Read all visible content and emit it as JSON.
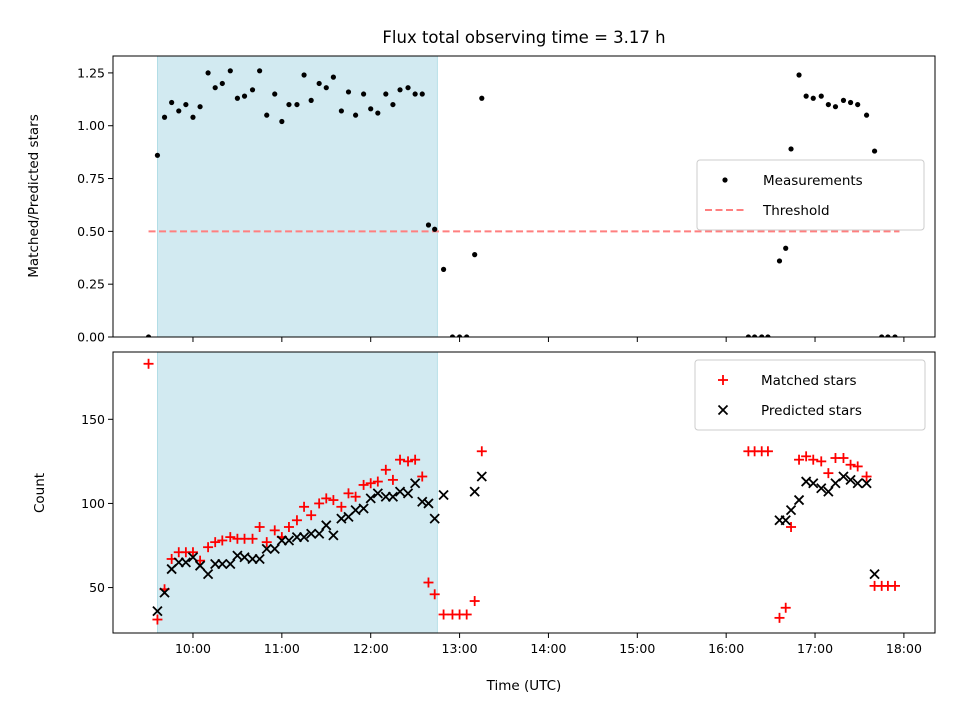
{
  "chart_data": {
    "type": "scatter",
    "title": "Flux total observing time = 3.17 h",
    "xlabel": "Time (UTC)",
    "xlim": [
      9.1,
      18.35
    ],
    "xticks": [
      10,
      11,
      12,
      13,
      14,
      15,
      16,
      17,
      18
    ],
    "xtick_labels": [
      "10:00",
      "11:00",
      "12:00",
      "13:00",
      "14:00",
      "15:00",
      "16:00",
      "17:00",
      "18:00"
    ],
    "shaded_span": [
      9.6,
      12.75
    ],
    "colors": {
      "shade": "#add8e6",
      "threshold": "#ff7f7f",
      "matched": "#ff0000",
      "predicted": "#000000",
      "measurement": "#000000"
    },
    "panels": [
      {
        "id": "ratio",
        "ylabel": "Matched/Predicted stars",
        "ylim": [
          0,
          1.33
        ],
        "yticks": [
          0,
          0.25,
          0.5,
          0.75,
          1.0,
          1.25
        ],
        "ytick_labels": [
          "0.00",
          "0.25",
          "0.50",
          "0.75",
          "1.00",
          "1.25"
        ],
        "legend": {
          "placement": "center-right",
          "entries": [
            "Measurements",
            "Threshold"
          ]
        },
        "threshold": {
          "name": "Threshold",
          "x": [
            9.5,
            17.95
          ],
          "y": [
            0.5,
            0.5
          ]
        },
        "series": [
          {
            "name": "Measurements",
            "x": [
              9.5,
              9.6,
              9.68,
              9.76,
              9.84,
              9.92,
              10.0,
              10.08,
              10.17,
              10.25,
              10.33,
              10.42,
              10.5,
              10.58,
              10.67,
              10.75,
              10.83,
              10.92,
              11.0,
              11.08,
              11.17,
              11.25,
              11.33,
              11.42,
              11.5,
              11.58,
              11.67,
              11.75,
              11.83,
              11.92,
              12.0,
              12.08,
              12.17,
              12.25,
              12.33,
              12.42,
              12.5,
              12.58,
              12.65,
              12.72,
              12.82,
              12.92,
              13.0,
              13.08,
              13.17,
              13.25,
              16.25,
              16.32,
              16.4,
              16.47,
              16.6,
              16.67,
              16.73,
              16.82,
              16.9,
              16.98,
              17.07,
              17.15,
              17.23,
              17.32,
              17.4,
              17.48,
              17.58,
              17.67,
              17.75,
              17.82,
              17.9
            ],
            "y": [
              0.0,
              0.86,
              1.04,
              1.11,
              1.07,
              1.1,
              1.04,
              1.09,
              1.25,
              1.18,
              1.2,
              1.26,
              1.13,
              1.14,
              1.17,
              1.26,
              1.05,
              1.15,
              1.02,
              1.1,
              1.1,
              1.24,
              1.12,
              1.2,
              1.18,
              1.23,
              1.07,
              1.16,
              1.05,
              1.15,
              1.08,
              1.06,
              1.15,
              1.1,
              1.17,
              1.18,
              1.15,
              1.15,
              0.53,
              0.51,
              0.32,
              0.0,
              0.0,
              0.0,
              0.39,
              1.13,
              0.0,
              0.0,
              0.0,
              0.0,
              0.36,
              0.42,
              0.89,
              1.24,
              1.14,
              1.13,
              1.14,
              1.1,
              1.09,
              1.12,
              1.11,
              1.1,
              1.05,
              0.88,
              0.0,
              0.0,
              0.0
            ]
          }
        ]
      },
      {
        "id": "count",
        "ylabel": "Count",
        "ylim": [
          23,
          190
        ],
        "yticks": [
          50,
          100,
          150
        ],
        "ytick_labels": [
          "50",
          "100",
          "150"
        ],
        "legend": {
          "placement": "upper-right",
          "entries": [
            "Matched stars",
            "Predicted stars"
          ]
        },
        "series": [
          {
            "name": "Matched stars",
            "marker": "plus",
            "x": [
              9.5,
              9.6,
              9.68,
              9.76,
              9.84,
              9.92,
              10.0,
              10.08,
              10.17,
              10.25,
              10.33,
              10.42,
              10.5,
              10.58,
              10.67,
              10.75,
              10.83,
              10.92,
              11.0,
              11.08,
              11.17,
              11.25,
              11.33,
              11.42,
              11.5,
              11.58,
              11.67,
              11.75,
              11.83,
              11.92,
              12.0,
              12.08,
              12.17,
              12.25,
              12.33,
              12.42,
              12.5,
              12.58,
              12.65,
              12.72,
              12.82,
              12.92,
              13.0,
              13.08,
              13.17,
              13.25,
              16.25,
              16.32,
              16.4,
              16.47,
              16.6,
              16.67,
              16.73,
              16.82,
              16.9,
              16.98,
              17.07,
              17.15,
              17.23,
              17.32,
              17.4,
              17.48,
              17.58,
              17.67,
              17.75,
              17.82,
              17.9
            ],
            "y": [
              183,
              31,
              49,
              67,
              71,
              71,
              71,
              66,
              74,
              77,
              78,
              80,
              79,
              79,
              79,
              86,
              77,
              84,
              80,
              86,
              90,
              98,
              93,
              100,
              103,
              102,
              98,
              106,
              104,
              111,
              112,
              113,
              120,
              114,
              126,
              125,
              126,
              116,
              53,
              46,
              34,
              34,
              34,
              34,
              42,
              131,
              131,
              131,
              131,
              131,
              32,
              38,
              86,
              126,
              128,
              126,
              125,
              118,
              127,
              127,
              123,
              122,
              116,
              51,
              51,
              51,
              51
            ]
          },
          {
            "name": "Predicted stars",
            "marker": "x",
            "x": [
              9.6,
              9.68,
              9.76,
              9.84,
              9.92,
              10.0,
              10.08,
              10.17,
              10.25,
              10.33,
              10.42,
              10.5,
              10.58,
              10.67,
              10.75,
              10.83,
              10.92,
              11.0,
              11.08,
              11.17,
              11.25,
              11.33,
              11.42,
              11.5,
              11.58,
              11.67,
              11.75,
              11.83,
              11.92,
              12.0,
              12.08,
              12.17,
              12.25,
              12.33,
              12.42,
              12.5,
              12.58,
              12.65,
              12.72,
              12.82,
              13.17,
              13.25,
              16.6,
              16.67,
              16.73,
              16.82,
              16.9,
              16.98,
              17.07,
              17.15,
              17.23,
              17.32,
              17.4,
              17.48,
              17.58,
              17.67
            ],
            "y": [
              36,
              47,
              61,
              65,
              65,
              68,
              63,
              58,
              64,
              64,
              64,
              69,
              68,
              67,
              67,
              73,
              73,
              78,
              78,
              80,
              80,
              82,
              82,
              87,
              81,
              91,
              92,
              96,
              97,
              103,
              106,
              104,
              104,
              107,
              106,
              112,
              101,
              100,
              91,
              105,
              107,
              116,
              90,
              90,
              96,
              102,
              113,
              112,
              109,
              107,
              112,
              116,
              114,
              112,
              112,
              58
            ]
          }
        ]
      }
    ]
  }
}
